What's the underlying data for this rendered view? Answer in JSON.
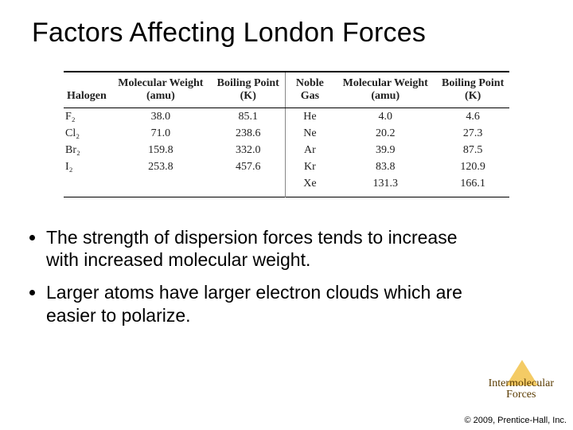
{
  "title": "Factors Affecting London Forces",
  "table": {
    "columns": [
      "Halogen",
      "Molecular Weight (amu)",
      "Boiling Point (K)",
      "Noble Gas",
      "Molecular Weight (amu)",
      "Boiling Point (K)"
    ],
    "column_widths": [
      "13%",
      "18%",
      "17%",
      "15%",
      "18%",
      "17%"
    ],
    "vdiv_after_col": 2,
    "rows": [
      [
        "F₂",
        "38.0",
        "85.1",
        "He",
        "4.0",
        "4.6"
      ],
      [
        "Cl₂",
        "71.0",
        "238.6",
        "Ne",
        "20.2",
        "27.3"
      ],
      [
        "Br₂",
        "159.8",
        "332.0",
        "Ar",
        "39.9",
        "87.5"
      ],
      [
        "I₂",
        "253.8",
        "457.6",
        "Kr",
        "83.8",
        "120.9"
      ],
      [
        "",
        "",
        "",
        "Xe",
        "131.3",
        "166.1"
      ]
    ],
    "header_font": "Times New Roman",
    "body_font": "Times New Roman",
    "font_size": 14,
    "border_top_color": "#000000",
    "border_bottom_color": "#000000",
    "vdiv_color": "#888888",
    "text_color": "#222222"
  },
  "bullets": [
    "The strength of dispersion forces tends to increase with increased molecular weight.",
    "Larger atoms have larger electron clouds which are easier to polarize."
  ],
  "corner": {
    "line1": "Intermolecular",
    "line2": "Forces",
    "text_color": "#5a3b00",
    "triangle_color": "#f2c24a"
  },
  "copyright": "© 2009, Prentice-Hall, Inc.",
  "colors": {
    "background": "#ffffff",
    "title_color": "#000000",
    "bullet_color": "#000000"
  },
  "typography": {
    "title_fontsize": 34,
    "bullet_fontsize": 23,
    "corner_fontsize": 14,
    "copyright_fontsize": 11
  }
}
